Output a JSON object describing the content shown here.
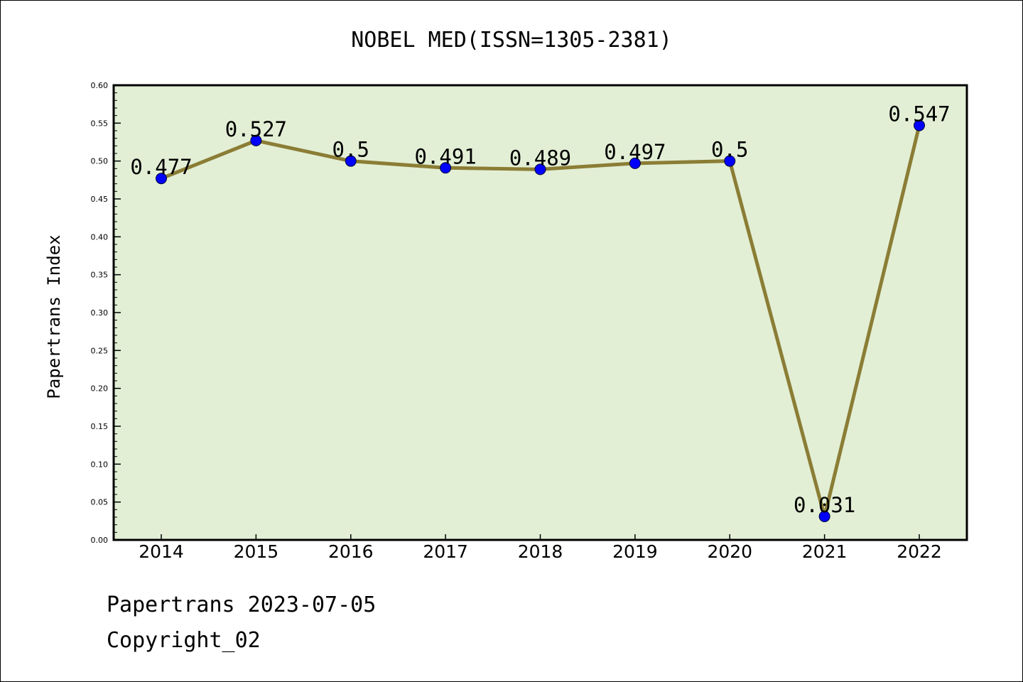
{
  "chart_data": {
    "type": "line",
    "title": "NOBEL MED(ISSN=1305-2381)",
    "xlabel": "",
    "ylabel": "Papertrans Index",
    "categories": [
      "2014",
      "2015",
      "2016",
      "2017",
      "2018",
      "2019",
      "2020",
      "2021",
      "2022"
    ],
    "values": [
      0.477,
      0.527,
      0.5,
      0.491,
      0.489,
      0.497,
      0.5,
      0.031,
      0.547
    ],
    "data_labels": [
      "0.477",
      "0.527",
      "0.5",
      "0.491",
      "0.489",
      "0.497",
      "0.5",
      "0.031",
      "0.547"
    ],
    "ylim": [
      0,
      0.6
    ],
    "yticks": [
      "0.00",
      "0.05",
      "0.10",
      "0.15",
      "0.20",
      "0.25",
      "0.30",
      "0.35",
      "0.40",
      "0.45",
      "0.50",
      "0.55",
      "0.60"
    ],
    "grid": false,
    "colors": {
      "line": "#8b7d35",
      "marker": "#0000ff",
      "plot_bg": "#e2efd5"
    }
  },
  "footer": {
    "line1": "Papertrans 2023-07-05",
    "line2": "Copyright_02"
  }
}
